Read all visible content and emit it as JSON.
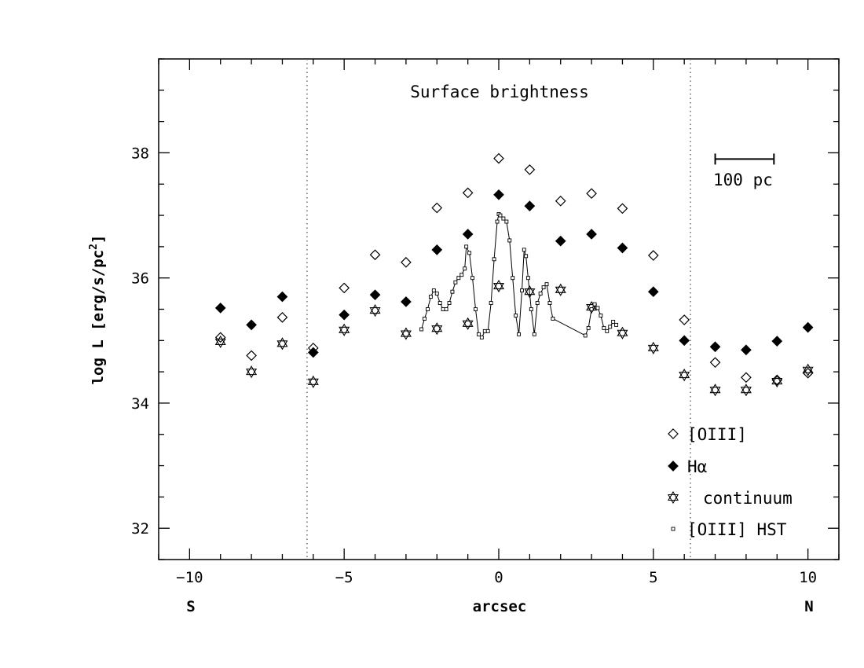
{
  "chart_data": {
    "type": "scatter",
    "title": "Surface brightness",
    "xlabel": "arcsec",
    "ylabel": "log L [erg/s/pc",
    "ylabel_sup": "2",
    "ylabel_end": "]",
    "xlim": [
      -11,
      11
    ],
    "ylim": [
      31.5,
      39.5
    ],
    "x_ticks": [
      -10,
      -5,
      0,
      5,
      10
    ],
    "x_tick_labels": [
      "−10",
      "−5",
      "0",
      "5",
      "10"
    ],
    "y_ticks": [
      32,
      34,
      36,
      38
    ],
    "y_tick_labels": [
      "32",
      "34",
      "36",
      "38"
    ],
    "x_end_labels": {
      "left": "S",
      "right": "N"
    },
    "vlines": [
      -6.2,
      6.2
    ],
    "scale_bar": {
      "label": "100 pc",
      "x_start": 7,
      "x_end": 8.9,
      "y": 37.9
    },
    "grid": false,
    "legend_position": "bottom-right",
    "series": [
      {
        "name": "[OIII]",
        "marker": "open-diamond",
        "points": [
          [
            -9,
            35.05
          ],
          [
            -8,
            34.76
          ],
          [
            -7,
            35.37
          ],
          [
            -6,
            34.88
          ],
          [
            -5,
            35.84
          ],
          [
            -4,
            36.37
          ],
          [
            -3,
            36.25
          ],
          [
            -2,
            37.12
          ],
          [
            -1,
            37.36
          ],
          [
            0,
            37.91
          ],
          [
            1,
            37.73
          ],
          [
            2,
            37.23
          ],
          [
            3,
            37.35
          ],
          [
            4,
            37.11
          ],
          [
            5,
            36.36
          ],
          [
            6,
            35.33
          ],
          [
            7,
            34.65
          ],
          [
            8,
            34.41
          ],
          [
            9,
            34.37
          ],
          [
            10,
            34.48
          ]
        ]
      },
      {
        "name": "Hα",
        "marker": "filled-diamond",
        "points": [
          [
            -9,
            35.52
          ],
          [
            -8,
            35.25
          ],
          [
            -7,
            35.7
          ],
          [
            -6,
            34.81
          ],
          [
            -5,
            35.41
          ],
          [
            -4,
            35.73
          ],
          [
            -3,
            35.62
          ],
          [
            -2,
            36.45
          ],
          [
            -1,
            36.7
          ],
          [
            0,
            37.33
          ],
          [
            1,
            37.15
          ],
          [
            2,
            36.59
          ],
          [
            3,
            36.7
          ],
          [
            4,
            36.48
          ],
          [
            5,
            35.78
          ],
          [
            6,
            35.0
          ],
          [
            7,
            34.9
          ],
          [
            8,
            34.85
          ],
          [
            9,
            34.99
          ],
          [
            10,
            35.21
          ]
        ]
      },
      {
        "name": "continuum",
        "marker": "star-of-david",
        "points": [
          [
            -9,
            34.98
          ],
          [
            -8,
            34.5
          ],
          [
            -7,
            34.95
          ],
          [
            -6,
            34.34
          ],
          [
            -5,
            35.17
          ],
          [
            -4,
            35.48
          ],
          [
            -3,
            35.11
          ],
          [
            -2,
            35.19
          ],
          [
            -1,
            35.27
          ],
          [
            0,
            35.87
          ],
          [
            1,
            35.78
          ],
          [
            2,
            35.81
          ],
          [
            3,
            35.53
          ],
          [
            4,
            35.12
          ],
          [
            5,
            34.88
          ],
          [
            6,
            34.45
          ],
          [
            7,
            34.21
          ],
          [
            8,
            34.21
          ],
          [
            9,
            34.35
          ],
          [
            10,
            34.53
          ]
        ]
      },
      {
        "name": "[OIII] HST",
        "marker": "small-square-line",
        "points": [
          [
            -2.5,
            35.18
          ],
          [
            -2.4,
            35.35
          ],
          [
            -2.3,
            35.5
          ],
          [
            -2.2,
            35.7
          ],
          [
            -2.1,
            35.8
          ],
          [
            -2.0,
            35.75
          ],
          [
            -1.9,
            35.6
          ],
          [
            -1.8,
            35.5
          ],
          [
            -1.7,
            35.5
          ],
          [
            -1.6,
            35.6
          ],
          [
            -1.5,
            35.78
          ],
          [
            -1.4,
            35.93
          ],
          [
            -1.3,
            36.0
          ],
          [
            -1.2,
            36.05
          ],
          [
            -1.1,
            36.15
          ],
          [
            -1.05,
            36.5
          ],
          [
            -0.95,
            36.4
          ],
          [
            -0.85,
            36.0
          ],
          [
            -0.75,
            35.5
          ],
          [
            -0.65,
            35.1
          ],
          [
            -0.55,
            35.05
          ],
          [
            -0.45,
            35.15
          ],
          [
            -0.35,
            35.15
          ],
          [
            -0.25,
            35.6
          ],
          [
            -0.15,
            36.3
          ],
          [
            -0.05,
            36.9
          ],
          [
            0.0,
            37.02
          ],
          [
            0.05,
            37.0
          ],
          [
            0.15,
            36.95
          ],
          [
            0.25,
            36.9
          ],
          [
            0.35,
            36.6
          ],
          [
            0.45,
            36.0
          ],
          [
            0.55,
            35.4
          ],
          [
            0.65,
            35.1
          ],
          [
            0.75,
            35.8
          ],
          [
            0.82,
            36.45
          ],
          [
            0.88,
            36.35
          ],
          [
            0.95,
            36.0
          ],
          [
            1.05,
            35.5
          ],
          [
            1.15,
            35.1
          ],
          [
            1.25,
            35.6
          ],
          [
            1.35,
            35.75
          ],
          [
            1.45,
            35.85
          ],
          [
            1.55,
            35.9
          ],
          [
            1.65,
            35.6
          ],
          [
            1.75,
            35.35
          ],
          [
            2.8,
            35.08
          ],
          [
            2.9,
            35.2
          ],
          [
            3.0,
            35.5
          ],
          [
            3.1,
            35.58
          ],
          [
            3.2,
            35.52
          ],
          [
            3.3,
            35.4
          ],
          [
            3.4,
            35.2
          ],
          [
            3.5,
            35.15
          ],
          [
            3.6,
            35.22
          ],
          [
            3.7,
            35.3
          ],
          [
            3.8,
            35.25
          ]
        ]
      }
    ]
  }
}
